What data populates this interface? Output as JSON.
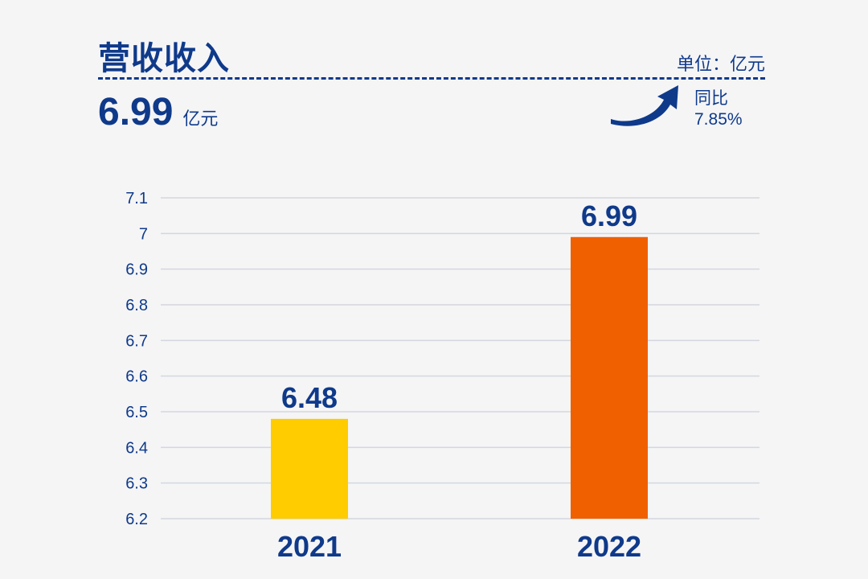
{
  "header": {
    "title": "营收收入",
    "unit_label": "单位：亿元",
    "headline_value": "6.99",
    "headline_unit": "亿元",
    "yoy_label": "同比",
    "yoy_value": "7.85%",
    "accent_color": "#0f3a8a",
    "arrow_icon": "curved-up-arrow-icon"
  },
  "chart_data": {
    "type": "bar",
    "categories": [
      "2021",
      "2022"
    ],
    "values": [
      6.48,
      6.99
    ],
    "data_labels": [
      "6.48",
      "6.99"
    ],
    "colors": [
      "#ffcc00",
      "#f06000"
    ],
    "title": "",
    "xlabel": "",
    "ylabel": "",
    "ylim": [
      6.2,
      7.1
    ],
    "yticks": [
      6.2,
      6.3,
      6.4,
      6.5,
      6.6,
      6.7,
      6.8,
      6.9,
      7,
      7.1
    ],
    "ytick_labels": [
      "6.2",
      "6.3",
      "6.4",
      "6.5",
      "6.6",
      "6.7",
      "6.8",
      "6.9",
      "7",
      "7.1"
    ],
    "grid": true,
    "legend": "none"
  }
}
